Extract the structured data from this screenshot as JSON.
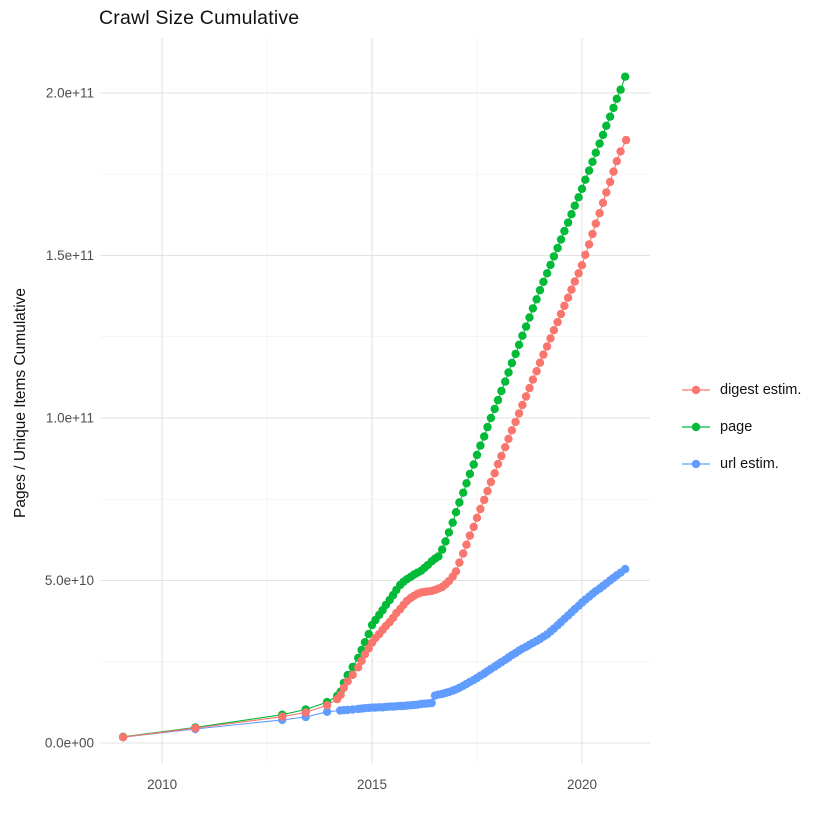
{
  "chart_data": {
    "type": "scatter",
    "title": "Crawl Size Cumulative",
    "xlabel": "",
    "ylabel": "Pages / Unique Items Cumulative",
    "y_unit": "items (values in billions, i.e. 1e9)",
    "grid": "on",
    "x_axis": {
      "domain": [
        2008.52,
        2021.62
      ],
      "major_ticks": [
        {
          "value": 2010,
          "label": "2010"
        },
        {
          "value": 2015,
          "label": "2015"
        },
        {
          "value": 2020,
          "label": "2020"
        }
      ],
      "minor_ticks": [
        2012.5,
        2017.5
      ]
    },
    "y_axis": {
      "domain": [
        -6.15,
        216.9
      ],
      "major_ticks": [
        {
          "value": 0,
          "label": "0.0e+00"
        },
        {
          "value": 50,
          "label": "5.0e+10"
        },
        {
          "value": 100,
          "label": "1.0e+11"
        },
        {
          "value": 150,
          "label": "1.5e+11"
        },
        {
          "value": 200,
          "label": "2.0e+11"
        }
      ],
      "minor_ticks": [
        25,
        75,
        125,
        175
      ]
    },
    "legend": {
      "position": "right",
      "entries": [
        {
          "label": "digest estim.",
          "color": "#F8766D"
        },
        {
          "label": "page",
          "color": "#00BA38"
        },
        {
          "label": "url estim.",
          "color": "#619CFF"
        }
      ]
    },
    "style": {
      "background": "#FFFFFF",
      "grid_major": "#E3E3E3",
      "grid_minor": "#F1F1F1",
      "point_radius": 4.2,
      "line_width": 1.1
    },
    "series": [
      {
        "name": "digest estim.",
        "color": "#F8766D",
        "z": 3,
        "points": [
          [
            2009.07,
            1.8
          ],
          [
            2010.79,
            4.6
          ],
          [
            2012.86,
            8.1
          ],
          [
            2013.42,
            9.4
          ],
          [
            2013.93,
            11.6
          ],
          [
            2014.17,
            13.5
          ],
          [
            2014.25,
            14.8
          ],
          [
            2014.33,
            17.0
          ],
          [
            2014.42,
            19.0
          ],
          [
            2014.54,
            21.0
          ],
          [
            2014.67,
            23.3
          ],
          [
            2014.75,
            25.3
          ],
          [
            2014.83,
            27.3
          ],
          [
            2014.92,
            29.1
          ],
          [
            2015.0,
            30.9
          ],
          [
            2015.08,
            32.3
          ],
          [
            2015.17,
            33.5
          ],
          [
            2015.25,
            34.8
          ],
          [
            2015.33,
            36.0
          ],
          [
            2015.42,
            37.2
          ],
          [
            2015.5,
            38.5
          ],
          [
            2015.58,
            40.0
          ],
          [
            2015.67,
            41.2
          ],
          [
            2015.75,
            42.5
          ],
          [
            2015.83,
            43.7
          ],
          [
            2015.92,
            44.6
          ],
          [
            2016.0,
            45.3
          ],
          [
            2016.08,
            45.9
          ],
          [
            2016.17,
            46.3
          ],
          [
            2016.25,
            46.5
          ],
          [
            2016.33,
            46.6
          ],
          [
            2016.42,
            46.8
          ],
          [
            2016.5,
            47.1
          ],
          [
            2016.58,
            47.5
          ],
          [
            2016.67,
            48.0
          ],
          [
            2016.75,
            48.8
          ],
          [
            2016.83,
            49.8
          ],
          [
            2016.92,
            51.2
          ],
          [
            2017.0,
            52.8
          ],
          [
            2017.08,
            55.5
          ],
          [
            2017.17,
            58.3
          ],
          [
            2017.25,
            61.0
          ],
          [
            2017.33,
            63.8
          ],
          [
            2017.42,
            66.5
          ],
          [
            2017.5,
            69.3
          ],
          [
            2017.58,
            72.0
          ],
          [
            2017.67,
            74.8
          ],
          [
            2017.75,
            77.5
          ],
          [
            2017.83,
            80.3
          ],
          [
            2017.92,
            83.0
          ],
          [
            2018.0,
            85.8
          ],
          [
            2018.08,
            88.3
          ],
          [
            2018.17,
            91.0
          ],
          [
            2018.25,
            93.6
          ],
          [
            2018.33,
            96.2
          ],
          [
            2018.42,
            98.8
          ],
          [
            2018.5,
            101.4
          ],
          [
            2018.58,
            104.0
          ],
          [
            2018.67,
            106.6
          ],
          [
            2018.75,
            109.2
          ],
          [
            2018.83,
            111.8
          ],
          [
            2018.92,
            114.4
          ],
          [
            2019.0,
            117.0
          ],
          [
            2019.08,
            119.5
          ],
          [
            2019.17,
            122.0
          ],
          [
            2019.25,
            124.5
          ],
          [
            2019.33,
            127.0
          ],
          [
            2019.42,
            129.5
          ],
          [
            2019.5,
            132.0
          ],
          [
            2019.58,
            134.5
          ],
          [
            2019.67,
            137.0
          ],
          [
            2019.75,
            139.5
          ],
          [
            2019.83,
            142.0
          ],
          [
            2019.92,
            144.5
          ],
          [
            2020.0,
            147.0
          ],
          [
            2020.08,
            150.2
          ],
          [
            2020.17,
            153.4
          ],
          [
            2020.25,
            156.6
          ],
          [
            2020.33,
            159.8
          ],
          [
            2020.42,
            163.0
          ],
          [
            2020.5,
            166.2
          ],
          [
            2020.58,
            169.4
          ],
          [
            2020.67,
            172.6
          ],
          [
            2020.75,
            175.8
          ],
          [
            2020.83,
            179.0
          ],
          [
            2020.92,
            182.0
          ],
          [
            2021.05,
            185.5
          ]
        ]
      },
      {
        "name": "page",
        "color": "#00BA38",
        "z": 1,
        "points": [
          [
            2009.07,
            1.9
          ],
          [
            2010.79,
            4.8
          ],
          [
            2012.86,
            8.7
          ],
          [
            2013.42,
            10.3
          ],
          [
            2013.93,
            12.6
          ],
          [
            2014.17,
            14.5
          ],
          [
            2014.25,
            15.8
          ],
          [
            2014.33,
            18.5
          ],
          [
            2014.42,
            20.9
          ],
          [
            2014.54,
            23.4
          ],
          [
            2014.67,
            26.2
          ],
          [
            2014.75,
            28.6
          ],
          [
            2014.83,
            31.0
          ],
          [
            2014.92,
            33.5
          ],
          [
            2015.0,
            36.3
          ],
          [
            2015.08,
            37.8
          ],
          [
            2015.17,
            39.4
          ],
          [
            2015.25,
            40.9
          ],
          [
            2015.33,
            42.5
          ],
          [
            2015.42,
            44.0
          ],
          [
            2015.5,
            45.5
          ],
          [
            2015.58,
            47.1
          ],
          [
            2015.67,
            48.6
          ],
          [
            2015.75,
            49.6
          ],
          [
            2015.83,
            50.4
          ],
          [
            2015.92,
            51.1
          ],
          [
            2016.0,
            51.8
          ],
          [
            2016.08,
            52.4
          ],
          [
            2016.17,
            53.0
          ],
          [
            2016.25,
            53.9
          ],
          [
            2016.33,
            54.8
          ],
          [
            2016.42,
            55.9
          ],
          [
            2016.5,
            56.7
          ],
          [
            2016.58,
            57.4
          ],
          [
            2016.67,
            59.5
          ],
          [
            2016.75,
            62.0
          ],
          [
            2016.83,
            64.8
          ],
          [
            2016.92,
            67.8
          ],
          [
            2017.0,
            71.0
          ],
          [
            2017.08,
            74.0
          ],
          [
            2017.17,
            77.0
          ],
          [
            2017.25,
            79.9
          ],
          [
            2017.33,
            82.8
          ],
          [
            2017.42,
            85.7
          ],
          [
            2017.5,
            88.6
          ],
          [
            2017.58,
            91.5
          ],
          [
            2017.67,
            94.3
          ],
          [
            2017.75,
            97.2
          ],
          [
            2017.83,
            100.0
          ],
          [
            2017.92,
            102.8
          ],
          [
            2018.0,
            105.5
          ],
          [
            2018.08,
            108.3
          ],
          [
            2018.17,
            111.2
          ],
          [
            2018.25,
            114.0
          ],
          [
            2018.33,
            116.9
          ],
          [
            2018.42,
            119.7
          ],
          [
            2018.5,
            122.5
          ],
          [
            2018.58,
            125.3
          ],
          [
            2018.67,
            128.1
          ],
          [
            2018.75,
            130.9
          ],
          [
            2018.83,
            133.7
          ],
          [
            2018.92,
            136.5
          ],
          [
            2019.0,
            139.3
          ],
          [
            2019.08,
            141.9
          ],
          [
            2019.17,
            144.5
          ],
          [
            2019.25,
            147.1
          ],
          [
            2019.33,
            149.7
          ],
          [
            2019.42,
            152.3
          ],
          [
            2019.5,
            154.9
          ],
          [
            2019.58,
            157.5
          ],
          [
            2019.67,
            160.1
          ],
          [
            2019.75,
            162.7
          ],
          [
            2019.83,
            165.3
          ],
          [
            2019.92,
            167.9
          ],
          [
            2020.0,
            170.5
          ],
          [
            2020.08,
            173.3
          ],
          [
            2020.17,
            176.1
          ],
          [
            2020.25,
            178.8
          ],
          [
            2020.33,
            181.6
          ],
          [
            2020.42,
            184.4
          ],
          [
            2020.5,
            187.1
          ],
          [
            2020.58,
            189.9
          ],
          [
            2020.67,
            192.7
          ],
          [
            2020.75,
            195.4
          ],
          [
            2020.83,
            198.2
          ],
          [
            2020.92,
            201.0
          ],
          [
            2021.03,
            205.0
          ]
        ]
      },
      {
        "name": "url estim.",
        "color": "#619CFF",
        "z": 2,
        "points": [
          [
            2009.07,
            1.8
          ],
          [
            2010.79,
            4.3
          ],
          [
            2012.86,
            7.1
          ],
          [
            2013.42,
            8.0
          ],
          [
            2013.93,
            9.6
          ],
          [
            2014.24,
            10.0
          ],
          [
            2014.33,
            10.1
          ],
          [
            2014.42,
            10.2
          ],
          [
            2014.54,
            10.3
          ],
          [
            2014.67,
            10.5
          ],
          [
            2014.75,
            10.6
          ],
          [
            2014.83,
            10.7
          ],
          [
            2014.92,
            10.8
          ],
          [
            2015.0,
            10.9
          ],
          [
            2015.08,
            10.9
          ],
          [
            2015.17,
            11.0
          ],
          [
            2015.25,
            11.0
          ],
          [
            2015.33,
            11.1
          ],
          [
            2015.42,
            11.2
          ],
          [
            2015.5,
            11.2
          ],
          [
            2015.58,
            11.3
          ],
          [
            2015.67,
            11.4
          ],
          [
            2015.75,
            11.4
          ],
          [
            2015.83,
            11.5
          ],
          [
            2015.92,
            11.6
          ],
          [
            2016.0,
            11.7
          ],
          [
            2016.08,
            11.8
          ],
          [
            2016.17,
            12.0
          ],
          [
            2016.25,
            12.1
          ],
          [
            2016.33,
            12.2
          ],
          [
            2016.42,
            12.3
          ],
          [
            2016.5,
            14.6
          ],
          [
            2016.58,
            14.9
          ],
          [
            2016.67,
            15.1
          ],
          [
            2016.75,
            15.4
          ],
          [
            2016.83,
            15.7
          ],
          [
            2016.92,
            16.1
          ],
          [
            2017.0,
            16.5
          ],
          [
            2017.08,
            17.0
          ],
          [
            2017.17,
            17.6
          ],
          [
            2017.25,
            18.2
          ],
          [
            2017.33,
            18.8
          ],
          [
            2017.42,
            19.4
          ],
          [
            2017.5,
            20.0
          ],
          [
            2017.58,
            20.7
          ],
          [
            2017.67,
            21.4
          ],
          [
            2017.75,
            22.1
          ],
          [
            2017.83,
            22.8
          ],
          [
            2017.92,
            23.5
          ],
          [
            2018.0,
            24.2
          ],
          [
            2018.08,
            24.9
          ],
          [
            2018.17,
            25.6
          ],
          [
            2018.25,
            26.3
          ],
          [
            2018.33,
            27.0
          ],
          [
            2018.42,
            27.7
          ],
          [
            2018.5,
            28.4
          ],
          [
            2018.58,
            29.0
          ],
          [
            2018.67,
            29.6
          ],
          [
            2018.75,
            30.2
          ],
          [
            2018.83,
            30.8
          ],
          [
            2018.92,
            31.4
          ],
          [
            2019.0,
            32.0
          ],
          [
            2019.08,
            32.7
          ],
          [
            2019.17,
            33.4
          ],
          [
            2019.25,
            34.3
          ],
          [
            2019.33,
            35.2
          ],
          [
            2019.42,
            36.2
          ],
          [
            2019.5,
            37.2
          ],
          [
            2019.58,
            38.2
          ],
          [
            2019.67,
            39.2
          ],
          [
            2019.75,
            40.2
          ],
          [
            2019.83,
            41.2
          ],
          [
            2019.92,
            42.2
          ],
          [
            2020.0,
            43.2
          ],
          [
            2020.08,
            44.1
          ],
          [
            2020.17,
            45.0
          ],
          [
            2020.25,
            45.9
          ],
          [
            2020.33,
            46.7
          ],
          [
            2020.42,
            47.5
          ],
          [
            2020.5,
            48.3
          ],
          [
            2020.58,
            49.1
          ],
          [
            2020.67,
            50.0
          ],
          [
            2020.75,
            50.8
          ],
          [
            2020.83,
            51.6
          ],
          [
            2020.92,
            52.4
          ],
          [
            2021.03,
            53.5
          ]
        ]
      }
    ]
  }
}
